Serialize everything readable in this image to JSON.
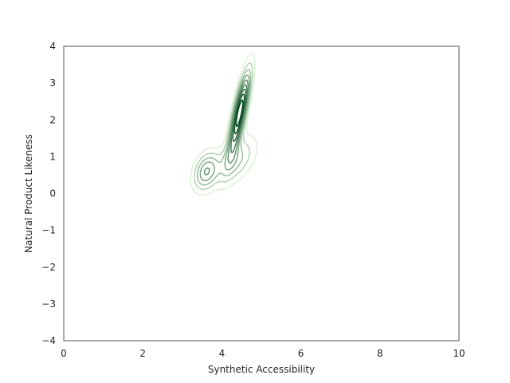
{
  "chart_data": {
    "type": "kde-contour",
    "title": "",
    "xlabel": "Synthetic Accessibility",
    "ylabel": "Natural Product Likeness",
    "xlim": [
      0,
      10
    ],
    "ylim": [
      -4,
      4
    ],
    "xticks": [
      0,
      2,
      4,
      6,
      8,
      10
    ],
    "xtick_labels": [
      "0",
      "2",
      "4",
      "6",
      "8",
      "10"
    ],
    "yticks": [
      -4,
      -3,
      -2,
      -1,
      0,
      1,
      2,
      3,
      4
    ],
    "ytick_labels": [
      "−4",
      "−3",
      "−2",
      "−1",
      "0",
      "1",
      "2",
      "3",
      "4"
    ],
    "grid": false,
    "colormap": "Greens",
    "levels": 9,
    "density_components": [
      {
        "mean": [
          4.45,
          2.2
        ],
        "sd": [
          0.18,
          0.75
        ],
        "correlation": 0.8,
        "weight": 0.5
      },
      {
        "mean": [
          3.6,
          0.6
        ],
        "sd": [
          0.22,
          0.35
        ],
        "correlation": 0.3,
        "weight": 0.22
      },
      {
        "mean": [
          4.35,
          0.9
        ],
        "sd": [
          0.35,
          0.45
        ],
        "correlation": 0.5,
        "weight": 0.28
      }
    ],
    "peak_region": {
      "x": [
        4.3,
        4.55
      ],
      "y": [
        1.7,
        2.6
      ]
    }
  }
}
